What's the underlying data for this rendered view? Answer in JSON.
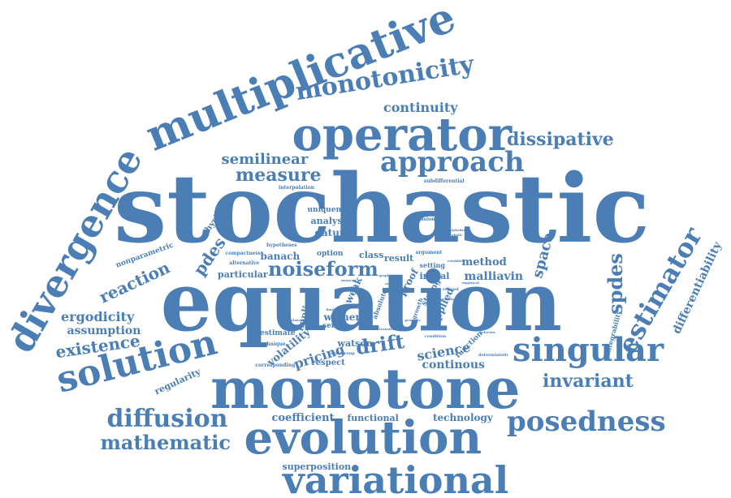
{
  "colors": {
    "word": "#4a7eb5",
    "background": "#ffffff"
  },
  "words": [
    "stochastic",
    "equation",
    "monotone",
    "multiplicative",
    "operator",
    "divergence",
    "evolution",
    "variational",
    "solution",
    "singular",
    "approach",
    "monotonicity",
    "posedness",
    "diffusion",
    "estimator",
    "mathematic",
    "existence",
    "invariant",
    "measure",
    "semilinear",
    "noiseform",
    "dissipative",
    "continuity",
    "drift",
    "spdes",
    "pdes",
    "reaction",
    "ergodicity",
    "assumption",
    "continous",
    "differentiability",
    "space",
    "coefficient",
    "science",
    "technology",
    "superposition",
    "regularity",
    "pricing",
    "volatility",
    "malliavin",
    "method",
    "functional",
    "analysis",
    "datum",
    "uniqueness",
    "particular",
    "watson",
    "respect",
    "initial",
    "class",
    "result",
    "banach",
    "option",
    "nonparametric",
    "physical",
    "integrability",
    "setting",
    "applied",
    "function",
    "weak",
    "wiener",
    "implied",
    "estimate",
    "sense",
    "strong",
    "proof",
    "interpolation",
    "subdifferential",
    "dimensional",
    "hypotheses",
    "compactness",
    "alternative",
    "technique",
    "corresponding",
    "deterministic",
    "condition",
    "argument",
    "frechet",
    "graph",
    "order",
    "term",
    "absolute",
    "mild",
    "growth",
    "semigroup",
    "classical",
    "limit",
    "property",
    "refined",
    "equality",
    "behavior",
    "transition",
    "empirical",
    "establish",
    "parabolic",
    "nonlinear",
    "moment",
    "polyhedral"
  ]
}
